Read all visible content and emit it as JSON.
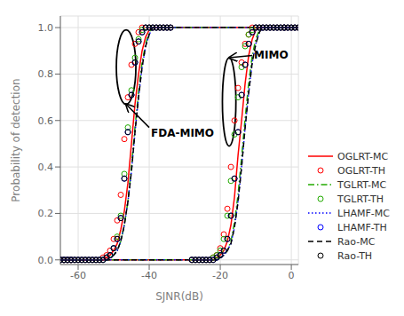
{
  "chart_data": {
    "type": "line",
    "xlabel": "SJNR(dB)",
    "ylabel": "Probability of detection",
    "xlim": [
      -65,
      2
    ],
    "ylim": [
      -0.02,
      1.05
    ],
    "xticks": [
      -60,
      -40,
      -20,
      0
    ],
    "yticks": [
      {
        "value": 0.0,
        "label": "0.0"
      },
      0.2,
      0.4,
      0.6,
      0.8,
      {
        "value": 1.0,
        "label": "1.0"
      }
    ],
    "grid": true,
    "legend": "lower right",
    "series": [
      {
        "name": "OGLRT-MC",
        "color": "#FF0000",
        "line_style": "solid",
        "x": [
          -65,
          -64,
          -63,
          -62,
          -61,
          -60,
          -59,
          -58,
          -57,
          -56,
          -55,
          -54,
          -53,
          -52,
          -51,
          -50,
          -49,
          -48,
          -47,
          -46,
          -45,
          -44,
          -43,
          -42,
          -41,
          -40,
          -39,
          -38,
          -37,
          -36,
          -35,
          -34,
          -2
        ],
        "values": [
          0,
          0,
          0,
          0,
          0,
          0,
          0,
          0,
          0,
          0,
          0,
          0,
          0,
          0.01,
          0.02,
          0.04,
          0.07,
          0.13,
          0.21,
          0.33,
          0.5,
          0.67,
          0.8,
          0.9,
          0.96,
          0.99,
          1.0,
          1.0,
          1.0,
          1.0,
          1.0,
          1.0,
          1.0
        ]
      },
      {
        "name": "OGLRT-TH",
        "color": "#FF0000",
        "line_style": "none",
        "marker": "circle",
        "x": [
          -65,
          -64,
          -63,
          -62,
          -61,
          -60,
          -59,
          -58,
          -57,
          -56,
          -55,
          -54,
          -53,
          -52,
          -51,
          -50,
          -49,
          -48,
          -47,
          -46,
          -45,
          -44,
          -43,
          -42,
          -41,
          -40,
          -39,
          -38,
          -37,
          -36,
          -35,
          -34,
          -2
        ],
        "values": [
          0,
          0,
          0,
          0,
          0,
          0,
          0,
          0,
          0,
          0,
          0,
          0,
          0.01,
          0.02,
          0.04,
          0.09,
          0.17,
          0.28,
          0.52,
          0.7,
          0.84,
          0.93,
          0.98,
          1.0,
          1.0,
          1.0,
          1.0,
          1.0,
          1.0,
          1.0,
          1.0,
          1.0,
          1.0
        ]
      },
      {
        "name": "TGLRT-MC",
        "color": "#22AA00",
        "line_style": "dashdot",
        "x": [
          -65,
          -64,
          -63,
          -62,
          -61,
          -60,
          -59,
          -58,
          -57,
          -56,
          -55,
          -54,
          -53,
          -52,
          -51,
          -50,
          -49,
          -48,
          -47,
          -46,
          -45,
          -44,
          -43,
          -42,
          -41,
          -40,
          -39,
          -38,
          -37,
          -36,
          -35,
          -34,
          -2
        ],
        "values": [
          0,
          0,
          0,
          0,
          0,
          0,
          0,
          0,
          0,
          0,
          0,
          0,
          0,
          0,
          0.01,
          0.02,
          0.04,
          0.08,
          0.15,
          0.25,
          0.4,
          0.57,
          0.72,
          0.85,
          0.93,
          0.98,
          1.0,
          1.0,
          1.0,
          1.0,
          1.0,
          1.0,
          1.0
        ]
      },
      {
        "name": "TGLRT-TH",
        "color": "#22AA00",
        "line_style": "none",
        "marker": "circle",
        "x": [
          -65,
          -64,
          -63,
          -62,
          -61,
          -60,
          -59,
          -58,
          -57,
          -56,
          -55,
          -54,
          -53,
          -52,
          -51,
          -50,
          -49,
          -48,
          -47,
          -46,
          -45,
          -44,
          -43,
          -42,
          -41,
          -40,
          -39,
          -38,
          -37,
          -36,
          -35,
          -34,
          -2
        ],
        "values": [
          0,
          0,
          0,
          0,
          0,
          0,
          0,
          0,
          0,
          0,
          0,
          0,
          0,
          0.01,
          0.02,
          0.05,
          0.1,
          0.19,
          0.37,
          0.57,
          0.73,
          0.87,
          0.95,
          0.99,
          1.0,
          1.0,
          1.0,
          1.0,
          1.0,
          1.0,
          1.0,
          1.0,
          1.0
        ]
      },
      {
        "name": "LHAMF-MC",
        "color": "#0000FF",
        "line_style": "dotted",
        "x": [
          -65,
          -64,
          -63,
          -62,
          -61,
          -60,
          -59,
          -58,
          -57,
          -56,
          -55,
          -54,
          -53,
          -52,
          -51,
          -50,
          -49,
          -48,
          -47,
          -46,
          -45,
          -44,
          -43,
          -42,
          -41,
          -40,
          -39,
          -38,
          -37,
          -36,
          -35,
          -34,
          -2
        ],
        "values": [
          0,
          0,
          0,
          0,
          0,
          0,
          0,
          0,
          0,
          0,
          0,
          0,
          0,
          0,
          0.01,
          0.02,
          0.04,
          0.08,
          0.15,
          0.25,
          0.38,
          0.55,
          0.7,
          0.83,
          0.92,
          0.97,
          1.0,
          1.0,
          1.0,
          1.0,
          1.0,
          1.0,
          1.0
        ]
      },
      {
        "name": "LHAMF-TH",
        "color": "#0000FF",
        "line_style": "none",
        "marker": "circle",
        "x": [
          -65,
          -64,
          -63,
          -62,
          -61,
          -60,
          -59,
          -58,
          -57,
          -56,
          -55,
          -54,
          -53,
          -52,
          -51,
          -50,
          -49,
          -48,
          -47,
          -46,
          -45,
          -44,
          -43,
          -42,
          -41,
          -40,
          -39,
          -38,
          -37,
          -36,
          -35,
          -34,
          -2
        ],
        "values": [
          0,
          0,
          0,
          0,
          0,
          0,
          0,
          0,
          0,
          0,
          0,
          0,
          0,
          0.01,
          0.02,
          0.05,
          0.09,
          0.18,
          0.35,
          0.55,
          0.71,
          0.85,
          0.94,
          0.98,
          1.0,
          1.0,
          1.0,
          1.0,
          1.0,
          1.0,
          1.0,
          1.0,
          1.0
        ]
      },
      {
        "name": "Rao-MC",
        "color": "#000000",
        "line_style": "dashed",
        "x": [
          -65,
          -64,
          -63,
          -62,
          -61,
          -60,
          -59,
          -58,
          -57,
          -56,
          -55,
          -54,
          -53,
          -52,
          -51,
          -50,
          -49,
          -48,
          -47,
          -46,
          -45,
          -44,
          -43,
          -42,
          -41,
          -40,
          -39,
          -38,
          -37,
          -36,
          -35,
          -34,
          -2
        ],
        "values": [
          0,
          0,
          0,
          0,
          0,
          0,
          0,
          0,
          0,
          0,
          0,
          0,
          0,
          0,
          0.01,
          0.02,
          0.04,
          0.08,
          0.15,
          0.25,
          0.38,
          0.55,
          0.7,
          0.83,
          0.92,
          0.97,
          1.0,
          1.0,
          1.0,
          1.0,
          1.0,
          1.0,
          1.0
        ]
      },
      {
        "name": "Rao-TH",
        "color": "#000000",
        "line_style": "none",
        "marker": "circle",
        "x": [
          -65,
          -64,
          -63,
          -62,
          -61,
          -60,
          -59,
          -58,
          -57,
          -56,
          -55,
          -54,
          -53,
          -52,
          -51,
          -50,
          -49,
          -48,
          -47,
          -46,
          -45,
          -44,
          -43,
          -42,
          -41,
          -40,
          -39,
          -38,
          -37,
          -36,
          -35,
          -34,
          -2
        ],
        "values": [
          0,
          0,
          0,
          0,
          0,
          0,
          0,
          0,
          0,
          0,
          0,
          0,
          0,
          0.01,
          0.02,
          0.05,
          0.09,
          0.18,
          0.35,
          0.55,
          0.71,
          0.85,
          0.94,
          0.98,
          1.0,
          1.0,
          1.0,
          1.0,
          1.0,
          1.0,
          1.0,
          1.0,
          1.0
        ]
      },
      {
        "color": "#FF0000",
        "line_style": "solid",
        "x": [
          -65,
          -64,
          -63,
          -62,
          -28,
          -27,
          -26,
          -25,
          -24,
          -23,
          -22,
          -21,
          -20,
          -19,
          -18,
          -17,
          -16,
          -15,
          -14,
          -13,
          -12,
          -11,
          -10,
          -9,
          -8,
          -7,
          -6,
          -5,
          -4,
          -3,
          -2,
          -1,
          0,
          1,
          2
        ],
        "values": [
          0,
          0,
          0,
          0,
          0,
          0,
          0,
          0,
          0,
          0,
          0,
          0.01,
          0.02,
          0.04,
          0.08,
          0.15,
          0.27,
          0.45,
          0.6,
          0.76,
          0.88,
          0.95,
          0.99,
          1.0,
          1.0,
          1.0,
          1.0,
          1.0,
          1.0,
          1.0,
          1.0,
          1.0,
          1.0,
          1.0,
          1.0
        ]
      },
      {
        "color": "#FF0000",
        "line_style": "none",
        "marker": "circle",
        "x": [
          -65,
          -64,
          -63,
          -62,
          -28,
          -27,
          -26,
          -25,
          -24,
          -23,
          -22,
          -21,
          -20,
          -19,
          -18,
          -17,
          -16,
          -15,
          -14,
          -13,
          -12,
          -11,
          -10,
          -9,
          -8,
          -7,
          -6,
          -5,
          -4,
          -3,
          -2,
          -1,
          0,
          1,
          2
        ],
        "values": [
          0,
          0,
          0,
          0,
          0,
          0,
          0,
          0,
          0,
          0,
          0.01,
          0.02,
          0.05,
          0.11,
          0.22,
          0.4,
          0.6,
          0.74,
          0.85,
          0.93,
          0.97,
          1.0,
          1.0,
          1.0,
          1.0,
          1.0,
          1.0,
          1.0,
          1.0,
          1.0,
          1.0,
          1.0,
          1.0,
          1.0,
          1.0
        ]
      },
      {
        "color": "#22AA00",
        "line_style": "dashdot",
        "x": [
          -65,
          -64,
          -63,
          -62,
          -28,
          -27,
          -26,
          -25,
          -24,
          -23,
          -22,
          -21,
          -20,
          -19,
          -18,
          -17,
          -16,
          -15,
          -14,
          -13,
          -12,
          -11,
          -10,
          -9,
          -8,
          -7,
          -6,
          -5,
          -4,
          -3,
          -2,
          -1,
          0,
          1,
          2
        ],
        "values": [
          0,
          0,
          0,
          0,
          0,
          0,
          0,
          0,
          0,
          0,
          0,
          0,
          0.01,
          0.02,
          0.04,
          0.08,
          0.16,
          0.28,
          0.44,
          0.61,
          0.76,
          0.88,
          0.95,
          0.99,
          1.0,
          1.0,
          1.0,
          1.0,
          1.0,
          1.0,
          1.0,
          1.0,
          1.0,
          1.0,
          1.0
        ]
      },
      {
        "color": "#22AA00",
        "line_style": "none",
        "marker": "circle",
        "x": [
          -65,
          -64,
          -63,
          -62,
          -28,
          -27,
          -26,
          -25,
          -24,
          -23,
          -22,
          -21,
          -20,
          -19,
          -18,
          -17,
          -16,
          -15,
          -14,
          -13,
          -12,
          -11,
          -10,
          -9,
          -8,
          -7,
          -6,
          -5,
          -4,
          -3,
          -2,
          -1,
          0,
          1,
          2
        ],
        "values": [
          0,
          0,
          0,
          0,
          0,
          0,
          0,
          0,
          0,
          0,
          0.01,
          0.02,
          0.04,
          0.09,
          0.19,
          0.34,
          0.54,
          0.7,
          0.83,
          0.92,
          0.97,
          0.99,
          1.0,
          1.0,
          1.0,
          1.0,
          1.0,
          1.0,
          1.0,
          1.0,
          1.0,
          1.0,
          1.0,
          1.0,
          1.0
        ]
      },
      {
        "color": "#0000FF",
        "line_style": "dotted",
        "x": [
          -65,
          -64,
          -63,
          -62,
          -28,
          -27,
          -26,
          -25,
          -24,
          -23,
          -22,
          -21,
          -20,
          -19,
          -18,
          -17,
          -16,
          -15,
          -14,
          -13,
          -12,
          -11,
          -10,
          -9,
          -8,
          -7,
          -6,
          -5,
          -4,
          -3,
          -2,
          -1,
          0,
          1,
          2
        ],
        "values": [
          0,
          0,
          0,
          0,
          0,
          0,
          0,
          0,
          0,
          0,
          0,
          0,
          0.01,
          0.02,
          0.04,
          0.07,
          0.14,
          0.25,
          0.4,
          0.57,
          0.72,
          0.85,
          0.93,
          0.98,
          1.0,
          1.0,
          1.0,
          1.0,
          1.0,
          1.0,
          1.0,
          1.0,
          1.0,
          1.0,
          1.0
        ]
      },
      {
        "color": "#0000FF",
        "line_style": "none",
        "marker": "circle",
        "x": [
          -65,
          -64,
          -63,
          -62,
          -28,
          -27,
          -26,
          -25,
          -24,
          -23,
          -22,
          -21,
          -20,
          -19,
          -18,
          -17,
          -16,
          -15,
          -14,
          -13,
          -12,
          -11,
          -10,
          -9,
          -8,
          -7,
          -6,
          -5,
          -4,
          -3,
          -2,
          -1,
          0,
          1,
          2
        ],
        "values": [
          0,
          0,
          0,
          0,
          0,
          0,
          0,
          0,
          0,
          0,
          0,
          0.01,
          0.02,
          0.04,
          0.09,
          0.19,
          0.35,
          0.55,
          0.71,
          0.84,
          0.93,
          0.98,
          1.0,
          1.0,
          1.0,
          1.0,
          1.0,
          1.0,
          1.0,
          1.0,
          1.0,
          1.0,
          1.0,
          1.0,
          1.0
        ]
      },
      {
        "color": "#000000",
        "line_style": "dashed",
        "x": [
          -65,
          -64,
          -63,
          -62,
          -28,
          -27,
          -26,
          -25,
          -24,
          -23,
          -22,
          -21,
          -20,
          -19,
          -18,
          -17,
          -16,
          -15,
          -14,
          -13,
          -12,
          -11,
          -10,
          -9,
          -8,
          -7,
          -6,
          -5,
          -4,
          -3,
          -2,
          -1,
          0,
          1,
          2
        ],
        "values": [
          0,
          0,
          0,
          0,
          0,
          0,
          0,
          0,
          0,
          0,
          0,
          0,
          0.01,
          0.02,
          0.04,
          0.07,
          0.14,
          0.25,
          0.4,
          0.57,
          0.72,
          0.85,
          0.93,
          0.98,
          1.0,
          1.0,
          1.0,
          1.0,
          1.0,
          1.0,
          1.0,
          1.0,
          1.0,
          1.0,
          1.0
        ]
      },
      {
        "color": "#000000",
        "line_style": "none",
        "marker": "circle",
        "x": [
          -65,
          -64,
          -63,
          -62,
          -28,
          -27,
          -26,
          -25,
          -24,
          -23,
          -22,
          -21,
          -20,
          -19,
          -18,
          -17,
          -16,
          -15,
          -14,
          -13,
          -12,
          -11,
          -10,
          -9,
          -8,
          -7,
          -6,
          -5,
          -4,
          -3,
          -2,
          -1,
          0,
          1,
          2
        ],
        "values": [
          0,
          0,
          0,
          0,
          0,
          0,
          0,
          0,
          0,
          0,
          0,
          0.01,
          0.02,
          0.04,
          0.09,
          0.19,
          0.35,
          0.55,
          0.71,
          0.84,
          0.93,
          0.98,
          1.0,
          1.0,
          1.0,
          1.0,
          1.0,
          1.0,
          1.0,
          1.0,
          1.0,
          1.0,
          1.0,
          1.0,
          1.0
        ]
      }
    ],
    "ellipses": [
      {
        "xy": [
          -46.5,
          0.83
        ],
        "width": 5.5,
        "height": 0.32,
        "color": "#000000"
      },
      {
        "xy": [
          -17.5,
          0.68
        ],
        "width": 3.8,
        "height": 0.38,
        "color": "#000000"
      }
    ],
    "annotations": [
      {
        "text": "FDA-MIMO",
        "xy": [
          -46.5,
          0.67
        ],
        "xytext": [
          -40,
          0.57
        ],
        "color": "#000000"
      },
      {
        "text": "MIMO",
        "xy": [
          -17.5,
          0.87
        ],
        "xytext": [
          -11,
          0.88
        ],
        "color": "#000000"
      }
    ]
  }
}
